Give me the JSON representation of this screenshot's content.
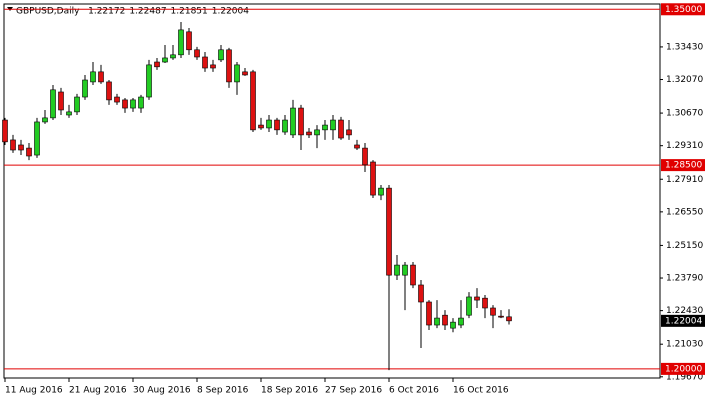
{
  "chart_data": {
    "type": "candlestick",
    "title": "GBPUSD,Daily",
    "categories": [
      "11 Aug 2016",
      null,
      null,
      null,
      null,
      null,
      null,
      null,
      "21 Aug 2016",
      null,
      null,
      null,
      null,
      null,
      null,
      null,
      "30 Aug 2016",
      null,
      null,
      null,
      null,
      null,
      null,
      null,
      "8 Sep 2016",
      null,
      null,
      null,
      null,
      null,
      null,
      null,
      "18 Sep 2016",
      null,
      null,
      null,
      null,
      null,
      null,
      null,
      "27 Sep 2016",
      null,
      null,
      null,
      null,
      null,
      null,
      null,
      "6 Oct 2016",
      null,
      null,
      null,
      null,
      null,
      null,
      null,
      "16 Oct 2016",
      null,
      null,
      null,
      null,
      null,
      null,
      null
    ],
    "open": [
      1.3038,
      1.2955,
      1.2934,
      1.2921,
      1.2892,
      1.303,
      1.3047,
      1.3155,
      1.3059,
      1.3072,
      1.3134,
      1.3197,
      1.3239,
      1.3197,
      1.3134,
      1.3122,
      1.3088,
      1.3088,
      1.3134,
      1.328,
      1.328,
      1.3297,
      1.331,
      1.3406,
      1.3331,
      1.3301,
      1.3268,
      1.3289,
      1.3331,
      1.3197,
      1.3239,
      1.3239,
      1.3017,
      1.3005,
      1.3038,
      1.2988,
      1.2976,
      1.3088,
      1.2988,
      1.2976,
      1.2997,
      1.2997,
      1.3038,
      1.2997,
      1.2934,
      1.2921,
      1.2863,
      1.2725,
      1.2754,
      1.2391,
      1.2391,
      1.2433,
      1.235,
      1.2279,
      1.2183,
      1.2224,
      1.217,
      1.2183,
      1.2224,
      1.23,
      1.2295,
      1.2254,
      1.222,
      1.22172
    ],
    "high": [
      1.3047,
      1.2976,
      1.2955,
      1.2942,
      1.3047,
      1.308,
      1.3184,
      1.3172,
      1.3101,
      1.3147,
      1.3226,
      1.328,
      1.3268,
      1.3205,
      1.3147,
      1.313,
      1.313,
      1.3143,
      1.3289,
      1.3297,
      1.3351,
      1.3351,
      1.3447,
      1.3422,
      1.3343,
      1.3322,
      1.3289,
      1.3351,
      1.3339,
      1.328,
      1.3255,
      1.3247,
      1.3047,
      1.3059,
      1.3047,
      1.3059,
      1.3122,
      1.3101,
      1.3005,
      1.3017,
      1.3038,
      1.3059,
      1.3051,
      1.3038,
      1.2955,
      1.2942,
      1.2871,
      1.2767,
      1.2767,
      1.2475,
      1.2446,
      1.2446,
      1.2371,
      1.2287,
      1.2287,
      1.2245,
      1.2212,
      1.2287,
      1.232,
      1.2337,
      1.2308,
      1.2266,
      1.2245,
      1.22487
    ],
    "low": [
      1.2934,
      1.2901,
      1.2892,
      1.2871,
      1.288,
      1.3022,
      1.3038,
      1.3059,
      1.3047,
      1.3059,
      1.3122,
      1.3184,
      1.3189,
      1.3101,
      1.3101,
      1.3068,
      1.3072,
      1.3068,
      1.3122,
      1.3247,
      1.3276,
      1.3289,
      1.3297,
      1.331,
      1.3289,
      1.3239,
      1.3239,
      1.328,
      1.3172,
      1.3143,
      1.3222,
      1.2988,
      1.2997,
      1.2988,
      1.2976,
      1.2976,
      1.2963,
      1.2913,
      1.2963,
      1.2921,
      1.2955,
      1.2955,
      1.2955,
      1.2955,
      1.2913,
      1.2821,
      1.2713,
      1.2704,
      1.1995,
      1.2371,
      1.2245,
      1.2337,
      1.2087,
      1.2162,
      1.217,
      1.2162,
      1.2153,
      1.217,
      1.2212,
      1.2254,
      1.2212,
      1.217,
      1.2212,
      1.21851
    ],
    "close": [
      1.2947,
      1.2913,
      1.2913,
      1.2888,
      1.303,
      1.3047,
      1.3164,
      1.308,
      1.3072,
      1.3134,
      1.3205,
      1.3239,
      1.3197,
      1.3122,
      1.3113,
      1.3088,
      1.3122,
      1.3134,
      1.3268,
      1.326,
      1.3297,
      1.331,
      1.3414,
      1.3331,
      1.3301,
      1.3255,
      1.3255,
      1.3331,
      1.3197,
      1.3268,
      1.3226,
      1.2997,
      1.3005,
      1.3038,
      1.2997,
      1.3038,
      1.3088,
      1.2976,
      1.2976,
      1.2997,
      1.3017,
      1.3038,
      1.2963,
      1.2976,
      1.2921,
      1.2851,
      1.2725,
      1.2754,
      1.2391,
      1.2433,
      1.2433,
      1.235,
      1.2279,
      1.2183,
      1.2212,
      1.2183,
      1.2195,
      1.2212,
      1.23,
      1.2287,
      1.2254,
      1.2224,
      1.2216,
      1.22004
    ],
    "up_color": "#22cc22",
    "down_color": "#dd1111",
    "ylim": [
      1.1962,
      1.3522
    ],
    "yticks": [
      {
        "value": 1.3343,
        "label": "1.33430"
      },
      {
        "value": 1.3207,
        "label": "1.32070"
      },
      {
        "value": 1.3067,
        "label": "1.30670"
      },
      {
        "value": 1.2931,
        "label": "1.29310"
      },
      {
        "value": 1.2791,
        "label": "1.27910"
      },
      {
        "value": 1.2655,
        "label": "1.26550"
      },
      {
        "value": 1.2515,
        "label": "1.25150"
      },
      {
        "value": 1.2379,
        "label": "1.23790"
      },
      {
        "value": 1.2243,
        "label": "1.22430"
      },
      {
        "value": 1.2103,
        "label": "1.21030"
      },
      {
        "value": 1.1967,
        "label": "1.19670"
      }
    ],
    "hlines": [
      {
        "value": 1.35,
        "label": "1.35000"
      },
      {
        "value": 1.285,
        "label": "1.28500"
      },
      {
        "value": 1.2,
        "label": "1.20000"
      }
    ],
    "hline_color": "#e00000"
  }
}
